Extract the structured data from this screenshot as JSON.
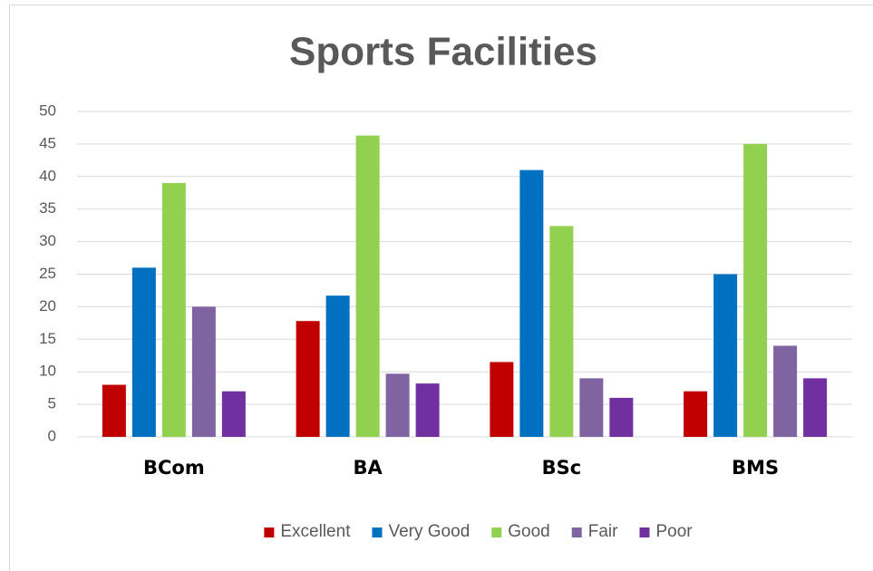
{
  "chart_data": {
    "type": "bar",
    "title": "Sports Facilities",
    "categories": [
      "BCom",
      "BA",
      "BSc",
      "BMS"
    ],
    "series": [
      {
        "name": "Excellent",
        "color": "#c00000",
        "values": [
          8,
          17.8,
          11.5,
          7
        ]
      },
      {
        "name": "Very Good",
        "color": "#0070c0",
        "values": [
          26,
          21.7,
          41,
          25
        ]
      },
      {
        "name": "Good",
        "color": "#92d050",
        "values": [
          39,
          46.3,
          32.4,
          45
        ]
      },
      {
        "name": "Fair",
        "color": "#8064a2",
        "values": [
          20,
          9.7,
          9,
          14
        ]
      },
      {
        "name": "Poor",
        "color": "#7030a0",
        "values": [
          7,
          8.2,
          6,
          9
        ]
      }
    ],
    "ylim": [
      0,
      50
    ],
    "yticks": [
      0,
      5,
      10,
      15,
      20,
      25,
      30,
      35,
      40,
      45,
      50
    ],
    "grid": true,
    "legend": "bottom"
  }
}
